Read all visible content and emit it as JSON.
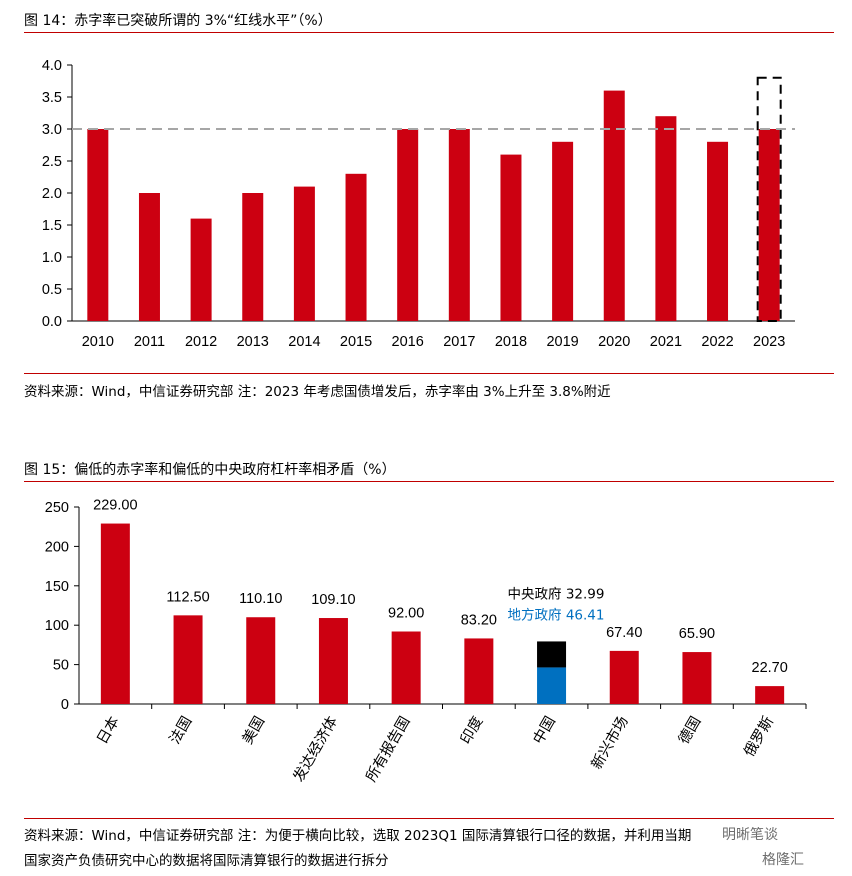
{
  "figure1": {
    "title": "图 14：赤字率已突破所谓的 3%“红线水平”（%）",
    "note": "资料来源：Wind，中信证券研究部  注：2023 年考虑国债增发后，赤字率由 3%上升至 3.8%附近",
    "chart_data": {
      "type": "bar",
      "categories": [
        "2010",
        "2011",
        "2012",
        "2013",
        "2014",
        "2015",
        "2016",
        "2017",
        "2018",
        "2019",
        "2020",
        "2021",
        "2022",
        "2023"
      ],
      "values": [
        3.0,
        2.0,
        1.6,
        2.0,
        2.1,
        2.3,
        3.0,
        3.0,
        2.6,
        2.8,
        3.6,
        3.2,
        2.8,
        3.0
      ],
      "ylim": [
        0,
        4.0
      ],
      "yticks": [
        "0.0",
        "0.5",
        "1.0",
        "1.5",
        "2.0",
        "2.5",
        "3.0",
        "3.5",
        "4.0"
      ],
      "reference_line": 3.0,
      "highlight": {
        "category": "2023",
        "value": 3.8
      },
      "bar_color": "#cc0011",
      "ref_line_color": "#a6a6a6",
      "grid": false
    }
  },
  "figure2": {
    "title": "图 15：偏低的赤字率和偏低的中央政府杠杆率相矛盾（%）",
    "note_line1": "资料来源：Wind，中信证券研究部  注：为便于横向比较，选取 2023Q1 国际清算银行口径的数据，并利用当期",
    "note_line2": "国家资产负债研究中心的数据将国际清算银行的数据进行拆分",
    "chart_data": {
      "type": "bar",
      "categories": [
        "日本",
        "法国",
        "美国",
        "发达经济体",
        "所有报告国",
        "印度",
        "中国",
        "新兴市场",
        "德国",
        "俄罗斯"
      ],
      "values": [
        229.0,
        112.5,
        110.1,
        109.1,
        92.0,
        83.2,
        null,
        67.4,
        65.9,
        22.7
      ],
      "value_labels": [
        "229.00",
        "112.50",
        "110.10",
        "109.10",
        "92.00",
        "83.20",
        "",
        "67.40",
        "65.90",
        "22.70"
      ],
      "stacked_china": [
        {
          "name": "中央政府",
          "value": 32.99,
          "label": "32.99",
          "color": "#000000"
        },
        {
          "name": "地方政府",
          "value": 46.41,
          "label": "46.41",
          "color": "#0070c0"
        }
      ],
      "ylim": [
        0,
        250
      ],
      "yticks": [
        "0",
        "50",
        "100",
        "150",
        "200",
        "250"
      ],
      "bar_color": "#cc0011",
      "grid": false
    }
  },
  "watermark": {
    "line1": "明晰笔谈",
    "line2": "格隆汇"
  }
}
